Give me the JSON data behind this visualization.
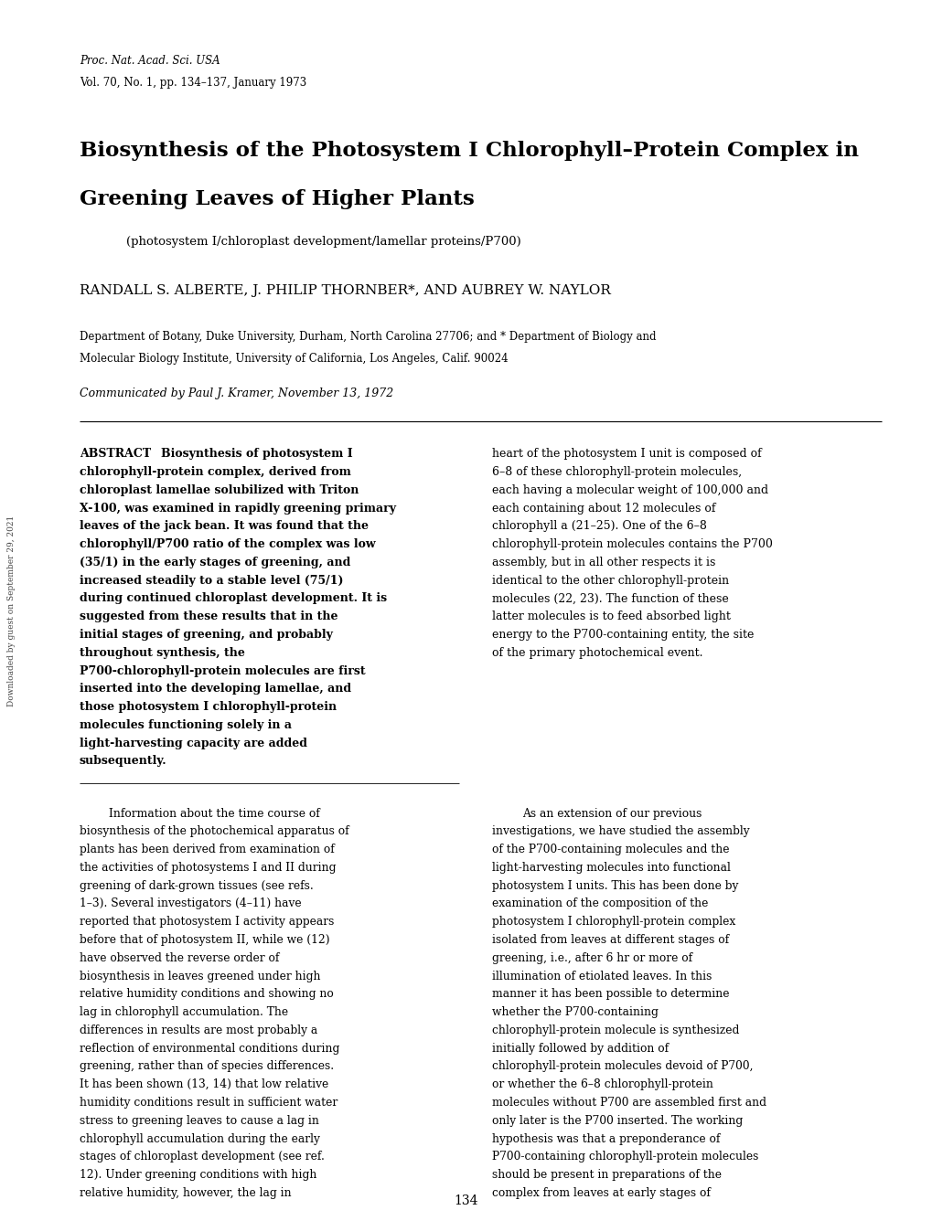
{
  "background_color": "#ffffff",
  "page_width": 10.2,
  "page_height": 13.36,
  "journal_line1": "Proc. Nat. Acad. Sci. USA",
  "journal_line2": "Vol. 70, No. 1, pp. 134–137, January 1973",
  "title_line1": "Biosynthesis of the Photosystem I Chlorophyll–Protein Complex in",
  "title_line2": "Greening Leaves of Higher Plants",
  "subtitle": "(photosystem I/chloroplast development/lamellar proteins/P700)",
  "authors": "RANDALL S. ALBERTE, J. PHILIP THORNBER*, AND AUBREY W. NAYLOR",
  "affiliation_line1": "Department of Botany, Duke University, Durham, North Carolina 27706; and * Department of Biology and",
  "affiliation_line2": "Molecular Biology Institute, University of California, Los Angeles, Calif. 90024",
  "communicated": "Communicated by Paul J. Kramer, November 13, 1972",
  "abstract_text": "Biosynthesis of photosystem I chlorophyll-protein complex, derived from chloroplast lamellae solubilized with Triton X-100, was examined in rapidly greening primary leaves of the jack bean. It was found that the chlorophyll/P700 ratio of the complex was low (35/1) in the early stages of greening, and increased steadily to a stable level (75/1) during continued chloroplast development. It is suggested from these results that in the initial stages of greening, and probably throughout synthesis, the P700-chlorophyll-protein molecules are first inserted into the developing lamellae, and those photosystem I chlorophyll-protein molecules functioning solely in a light-harvesting capacity are added subsequently.",
  "right_abstract_text": "heart of the photosystem I unit is composed of 6–8 of these chlorophyll-protein molecules, each having a molecular weight of 100,000 and each containing about 12 molecules of chlorophyll a (21–25). One of the 6–8 chlorophyll-protein molecules contains the P700 assembly, but in all other respects it is identical to the other chlorophyll-protein molecules (22, 23). The function of these latter molecules is to feed absorbed light energy to the P700-containing entity, the site of the primary photochemical event.",
  "body_left_col": "Information about the time course of biosynthesis of the photochemical apparatus of plants has been derived from examination of the activities of photosystems I and II during greening of dark-grown tissues (see refs. 1–3). Several investigators (4–11) have reported that photosystem I activity appears before that of photosystem II, while we (12) have observed the reverse order of biosynthesis in leaves greened under high relative humidity conditions and showing no lag in chlorophyll accumulation. The differences in results are most probably a reflection of environmental conditions during greening, rather than of species differences.  It has been shown (13, 14) that low relative humidity conditions result in sufficient water stress to greening leaves to cause a lag in chlorophyll accumulation during the early stages of chloroplast development (see ref. 12). Under greening conditions with high relative humidity, however, the lag in chlorophyll accumulation is eliminated and there is rapid and uniform chloroplast development (12, 14, 15). In etiolated tissues greening under high relative humidity conditions, photosystem II becomes functional before photosystem I. Thus, it appears that assembly processes for photosystem II are more responsive to water stress than are those for photosystem I (16).\n\n    Further, our work (12) supports the generally accepted view (13, 17–20) that a step-wise, rather than a simultaneous, synthesis of the components of the thylakoid membranes occurs. We (12) detected the first signs of photosystem II activity after 2 hr of greening of etiolated jack bean leaves, while photosystem I activity was first observed 4 hr later.\n\n    With respect to the photosystem I activity, a correlation was observed between the appearance of a photo-oxidizable P700 molecule (the photochemical reaction center of photosystem I) and that of the photosystem I chlorophyll-protein complex (21) after 6 hr of greening. In fully green tissues the",
  "body_right_col": "As an extension of our previous investigations, we have studied the assembly of the P700-containing molecules and the light-harvesting molecules into functional photosystem I units. This has been done by examination of the composition of the photosystem I chlorophyll-protein complex isolated from leaves at different stages of greening, i.e., after 6 hr or more of illumination of etiolated leaves. In this manner it has been possible to determine whether the P700-containing chlorophyll-protein molecule is synthesized initially followed by addition of chlorophyll-protein molecules devoid of P700, or whether the 6–8 chlorophyll-protein molecules without P700 are assembled first and only later is the P700 inserted. The working hypothesis was that a preponderance of P700-containing chlorophyll-protein molecules should be present in preparations of the complex from leaves at early stages of photosystem I development, if the first alternative was correct. This would be reflected in a low chlorophyll/P700 ratio that would increase after further greening. If the second alternative was correct, however, the composition of the chlorophyll-protein preparation should be constant at all stages of greening after initiation of P700 synthesis. The results obtained support the view that the first alternative is correct.\n\nMATERIALS AND METHODS\n\n    Plant Material. Jack beans [Canavalia ensiformis (L.) DC.] were germinated and grown for 7 days in total darkness at 28° with 80–85% relative humidity as described (12). On the seventh day, the etiolated seedlings were illuminated with incandescent light (General Electric 150-W cool beam flood lamps) at 750–1000 ft-cd.\n\n    Preparation of Triton Lamellar Extracts. Primary leaves were harvested at specific times during greening and chloroplast lamellar extracts were prepared. The leaves were homogenized in a Waring Blendor in 0.50 M sucrose-50 mM Tris·HCl (pH 8.0), and the brei was filtered through cheesecloth.",
  "page_number": "134",
  "watermark": "Downloaded by guest on September 29, 2021"
}
